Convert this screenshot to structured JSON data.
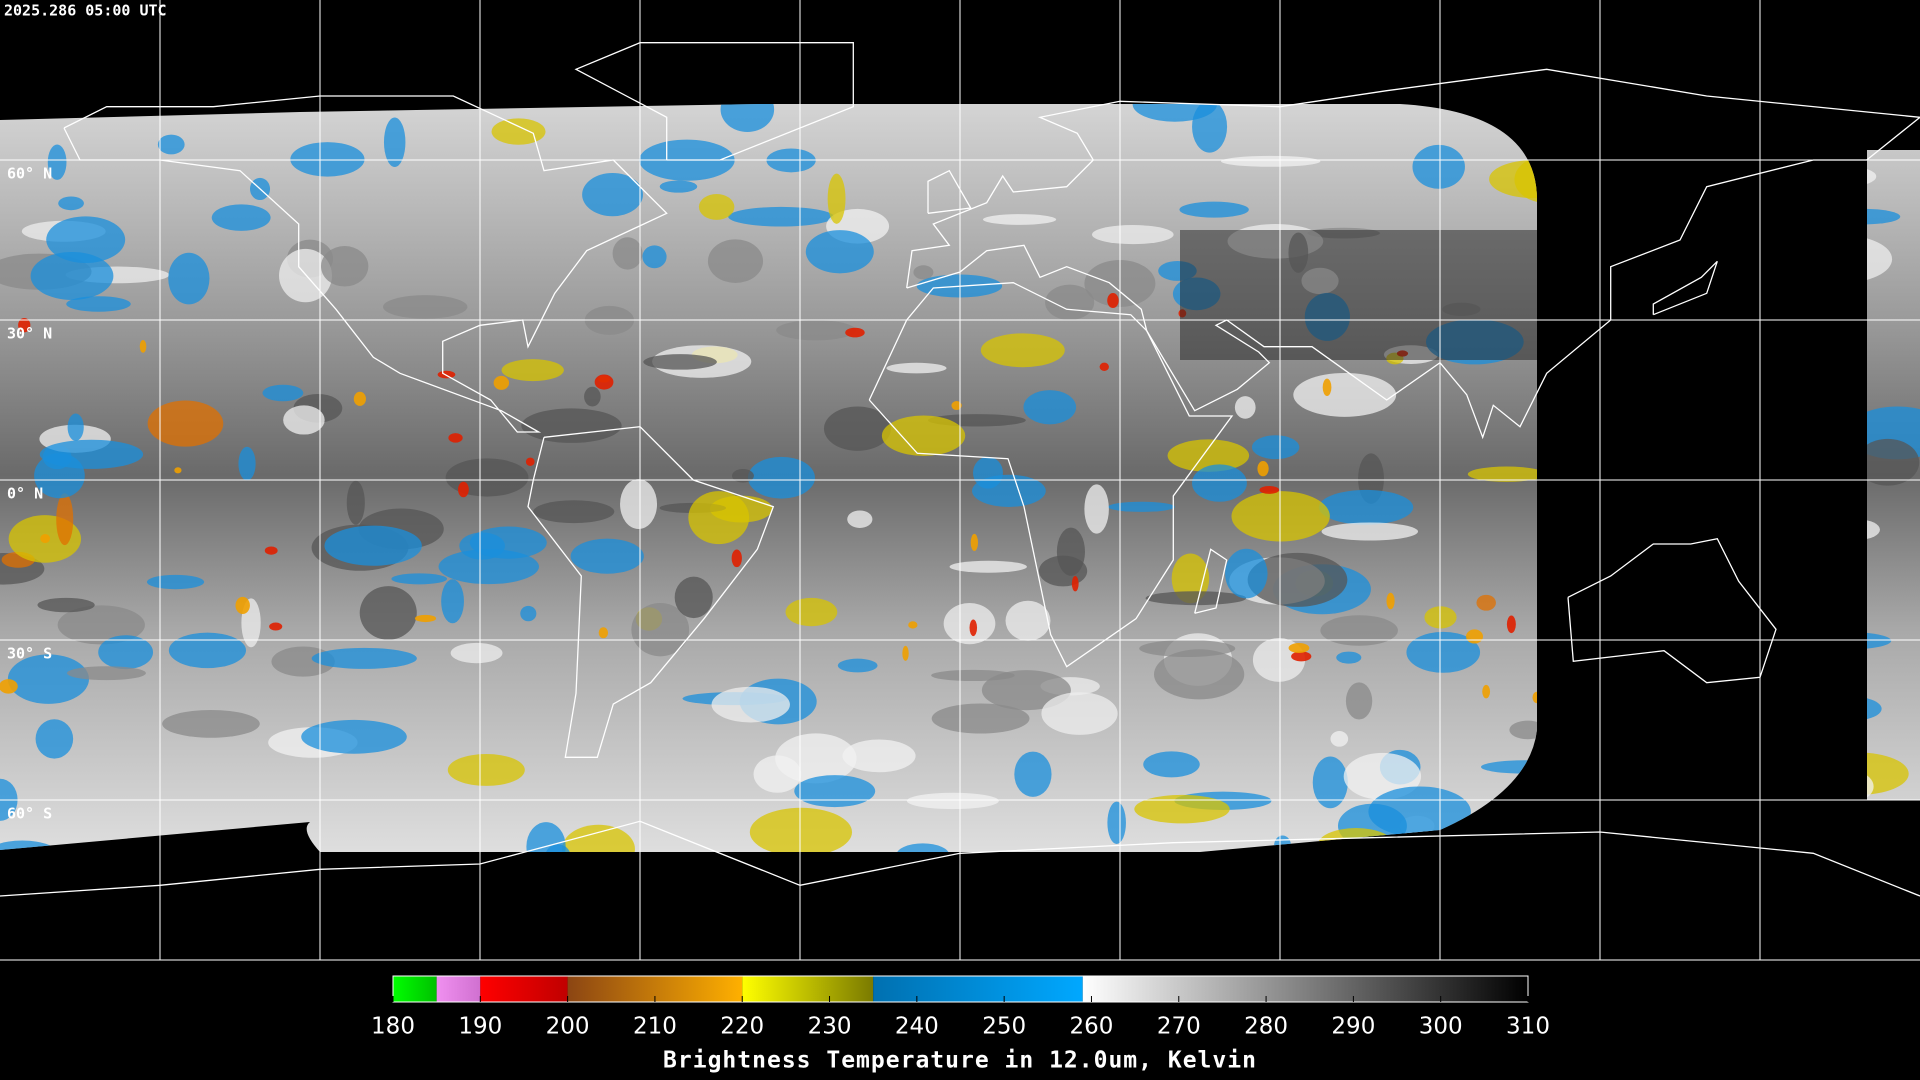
{
  "header": {
    "timestamp": "2025.286 05:00 UTC"
  },
  "map": {
    "lat_labels": [
      "60° N",
      "30° N",
      "0° N",
      "30° S",
      "60° S"
    ]
  },
  "colorbar": {
    "title": "Brightness Temperature in 12.0um, Kelvin",
    "range": [
      180,
      310
    ],
    "ticks": [
      180,
      190,
      200,
      210,
      220,
      230,
      240,
      250,
      260,
      270,
      280,
      290,
      300,
      310
    ],
    "segments": [
      {
        "from": 180,
        "to": 185,
        "colors": [
          "#00ff00",
          "#00c000"
        ]
      },
      {
        "from": 185,
        "to": 190,
        "colors": [
          "#f090f0",
          "#d070d0"
        ]
      },
      {
        "from": 190,
        "to": 200,
        "colors": [
          "#ff0000",
          "#c00000"
        ]
      },
      {
        "from": 200,
        "to": 220,
        "colors": [
          "#8b4513",
          "#ffb000"
        ]
      },
      {
        "from": 220,
        "to": 235,
        "colors": [
          "#ffff00",
          "#7a7a00"
        ]
      },
      {
        "from": 235,
        "to": 259,
        "colors": [
          "#0070b0",
          "#00a8ff"
        ]
      },
      {
        "from": 259,
        "to": 310,
        "colors": [
          "#ffffff",
          "#000000"
        ]
      }
    ]
  }
}
